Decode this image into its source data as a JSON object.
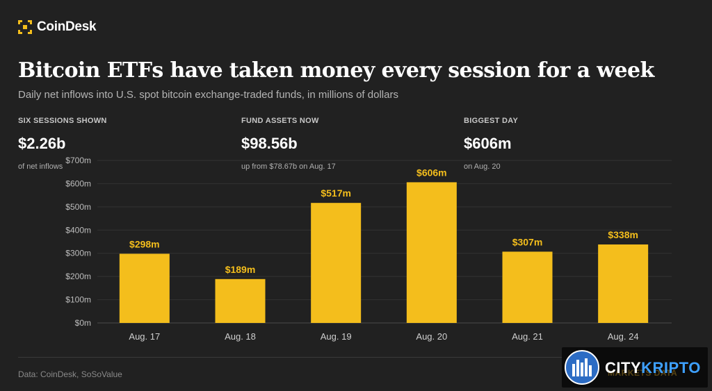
{
  "brand": {
    "name": "CoinDesk",
    "accent": "#F4BE1C"
  },
  "headline": "Bitcoin ETFs have taken money every session for a week",
  "subhead": "Daily net inflows into U.S. spot bitcoin exchange-traded funds, in millions of dollars",
  "stats": [
    {
      "label": "SIX SESSIONS SHOWN",
      "value": "$2.26b",
      "note": "of net inflows"
    },
    {
      "label": "FUND ASSETS NOW",
      "value": "$98.56b",
      "note": "up from $78.67b on Aug. 17"
    },
    {
      "label": "BIGGEST DAY",
      "value": "$606m",
      "note": "on Aug. 20"
    }
  ],
  "source": "Data: CoinDesk, SoSoValue",
  "watermark": {
    "city": "CITY",
    "kripto": "KRIPTO",
    "sub": "MARKETS DATA"
  },
  "chart_data": {
    "type": "bar",
    "categories": [
      "Aug. 17",
      "Aug. 18",
      "Aug. 19",
      "Aug. 20",
      "Aug. 21",
      "Aug. 24"
    ],
    "values": [
      298,
      189,
      517,
      606,
      307,
      338
    ],
    "value_labels": [
      "$298m",
      "$189m",
      "$517m",
      "$606m",
      "$307m",
      "$338m"
    ],
    "ylim": [
      0,
      700
    ],
    "yticks": [
      0,
      100,
      200,
      300,
      400,
      500,
      600,
      700
    ],
    "ytick_labels": [
      "$0m",
      "$100m",
      "$200m",
      "$300m",
      "$400m",
      "$500m",
      "$600m",
      "$700m"
    ],
    "grid": true,
    "bar_color": "#F4BE1C",
    "xlabel": "",
    "ylabel": ""
  }
}
